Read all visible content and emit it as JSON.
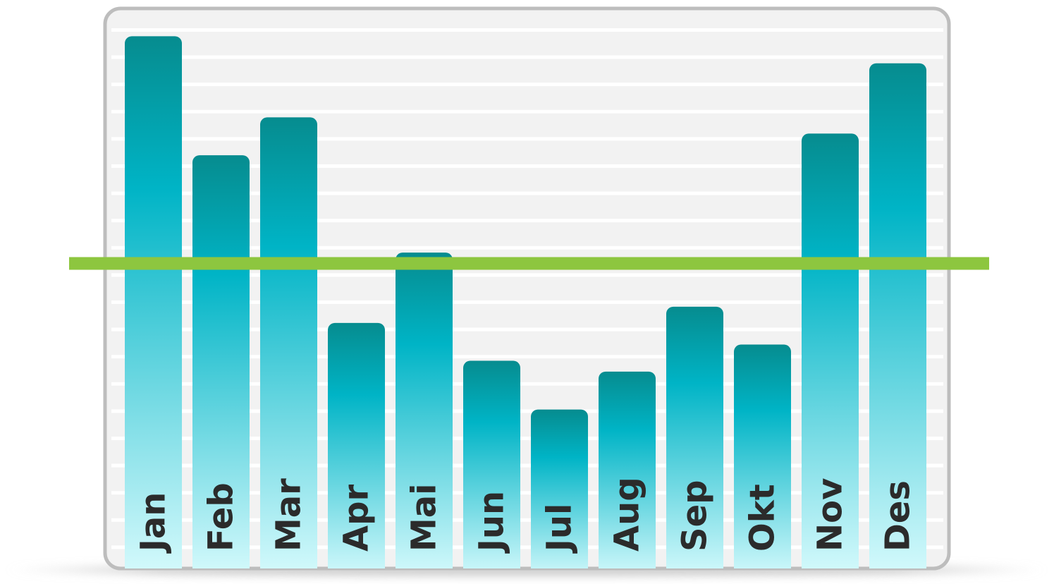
{
  "chart_data": {
    "type": "bar",
    "title": "",
    "xlabel": "",
    "ylabel": "",
    "categories": [
      "Jan",
      "Feb",
      "Mar",
      "Apr",
      "Mai",
      "Jun",
      "Jul",
      "Aug",
      "Sep",
      "Okt",
      "Nov",
      "Des"
    ],
    "values": [
      98,
      76,
      83,
      45,
      58,
      38,
      29,
      36,
      48,
      41,
      80,
      93
    ],
    "ylim": [
      0,
      100
    ],
    "grid": true,
    "reference_line": {
      "value": 56,
      "color": "#8dc63f"
    },
    "colors": {
      "bar_top": "#068c8f",
      "bar_mid": "#00b4c6",
      "bar_bottom": "#d8fbfd",
      "panel_bg": "#f2f2f2",
      "panel_border": "#bdbdbd",
      "grid_line": "#ffffff"
    }
  }
}
